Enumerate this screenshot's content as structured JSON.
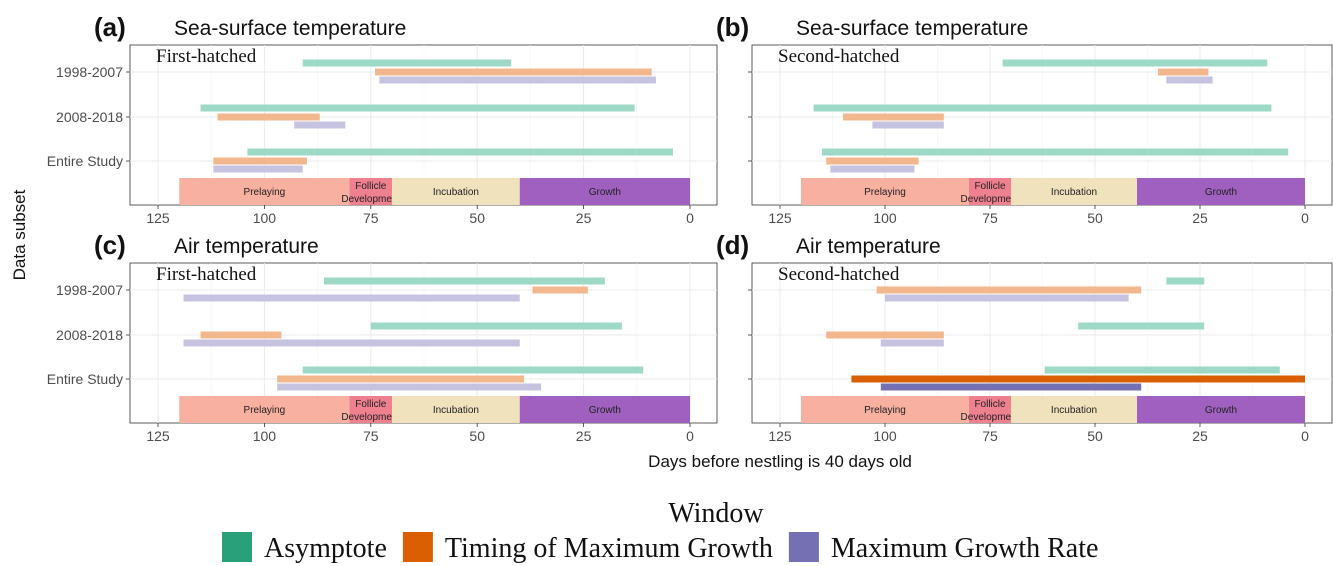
{
  "figure": {
    "ylabel": "Data subset",
    "xlabel": "Days before nestling is 40 days old",
    "legend_title": "Window",
    "legend": [
      {
        "label": "Asymptote",
        "color": "#2aa07a"
      },
      {
        "label": "Timing of Maximum Growth",
        "color": "#d95f02"
      },
      {
        "label": "Maximum Growth Rate",
        "color": "#7570b3"
      }
    ]
  },
  "stages": [
    {
      "label": "Prelaying",
      "from": 120,
      "to": 80,
      "color": "#f8b0a0"
    },
    {
      "label": "Follicle\nDevelopment",
      "from": 80,
      "to": 70,
      "color": "#ef8090"
    },
    {
      "label": "Incubation",
      "from": 70,
      "to": 40,
      "color": "#f0e2bc"
    },
    {
      "label": "Growth",
      "from": 40,
      "to": 0,
      "color": "#a060c0"
    }
  ],
  "chart_data": [
    {
      "type": "bar",
      "panel_letter": "(a)",
      "title": "Sea-surface temperature",
      "subtitle": "First-hatched",
      "categories": [
        "1998-2007",
        "2008-2018",
        "Entire Study"
      ],
      "x_ticks": [
        125,
        100,
        75,
        50,
        25,
        0
      ],
      "xlim": [
        125,
        0
      ],
      "series": [
        {
          "name": "Asymptote",
          "faded": true,
          "ranges": [
            [
              91,
              42
            ],
            [
              115,
              13
            ],
            [
              104,
              4
            ]
          ]
        },
        {
          "name": "Timing of Maximum Growth",
          "faded": true,
          "ranges": [
            [
              74,
              9
            ],
            [
              111,
              87
            ],
            [
              112,
              90
            ]
          ]
        },
        {
          "name": "Maximum Growth Rate",
          "faded": true,
          "ranges": [
            [
              73,
              8
            ],
            [
              93,
              81
            ],
            [
              112,
              91
            ]
          ]
        }
      ]
    },
    {
      "type": "bar",
      "panel_letter": "(b)",
      "title": "Sea-surface temperature",
      "subtitle": "Second-hatched",
      "categories": [
        "1998-2007",
        "2008-2018",
        "Entire Study"
      ],
      "x_ticks": [
        125,
        100,
        75,
        50,
        25,
        0
      ],
      "xlim": [
        125,
        0
      ],
      "series": [
        {
          "name": "Asymptote",
          "faded": true,
          "ranges": [
            [
              72,
              9
            ],
            [
              117,
              8
            ],
            [
              115,
              4
            ]
          ]
        },
        {
          "name": "Timing of Maximum Growth",
          "faded": true,
          "ranges": [
            [
              35,
              23
            ],
            [
              110,
              86
            ],
            [
              114,
              92
            ]
          ]
        },
        {
          "name": "Maximum Growth Rate",
          "faded": true,
          "ranges": [
            [
              33,
              22
            ],
            [
              103,
              86
            ],
            [
              113,
              93
            ]
          ]
        }
      ]
    },
    {
      "type": "bar",
      "panel_letter": "(c)",
      "title": "Air temperature",
      "subtitle": "First-hatched",
      "categories": [
        "1998-2007",
        "2008-2018",
        "Entire Study"
      ],
      "x_ticks": [
        125,
        100,
        75,
        50,
        25,
        0
      ],
      "xlim": [
        125,
        0
      ],
      "series": [
        {
          "name": "Asymptote",
          "faded": true,
          "ranges": [
            [
              86,
              20
            ],
            [
              75,
              16
            ],
            [
              91,
              11
            ]
          ]
        },
        {
          "name": "Timing of Maximum Growth",
          "faded": true,
          "ranges": [
            [
              37,
              24
            ],
            [
              115,
              96
            ],
            [
              97,
              39
            ]
          ]
        },
        {
          "name": "Maximum Growth Rate",
          "faded": true,
          "ranges": [
            [
              119,
              40
            ],
            [
              119,
              40
            ],
            [
              97,
              35
            ]
          ]
        }
      ]
    },
    {
      "type": "bar",
      "panel_letter": "(d)",
      "title": "Air temperature",
      "subtitle": "Second-hatched",
      "categories": [
        "1998-2007",
        "2008-2018",
        "Entire Study"
      ],
      "x_ticks": [
        125,
        100,
        75,
        50,
        25,
        0
      ],
      "xlim": [
        125,
        0
      ],
      "series": [
        {
          "name": "Asymptote",
          "faded": true,
          "ranges": [
            [
              33,
              24
            ],
            [
              54,
              24
            ],
            [
              62,
              6
            ]
          ]
        },
        {
          "name": "Timing of Maximum Growth",
          "faded": true,
          "ranges": [
            [
              102,
              39
            ],
            [
              114,
              86
            ],
            [
              108,
              0
            ]
          ],
          "highlight_row": 2
        },
        {
          "name": "Maximum Growth Rate",
          "faded": true,
          "ranges": [
            [
              100,
              42
            ],
            [
              101,
              86
            ],
            [
              101,
              39
            ]
          ],
          "highlight_row": 2
        }
      ]
    }
  ]
}
